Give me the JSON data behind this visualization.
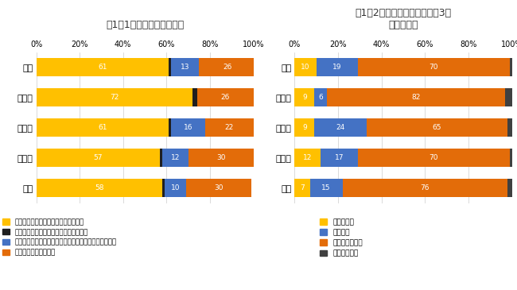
{
  "chart1": {
    "title": "図1－1　減農薬の取り組み",
    "categories": [
      "全国",
      "北海道",
      "東日本",
      "西日本",
      "九州"
    ],
    "series": [
      {
        "label": "１：成分数を制限して取り組んでいる",
        "color": "#FFC000",
        "values": [
          61,
          72,
          61,
          57,
          58
        ]
      },
      {
        "label": "２：散布回数を制限して取り組んでいる",
        "color": "#1F1F1F",
        "values": [
          1,
          2,
          1,
          1,
          1
        ]
      },
      {
        "label": "３：成分数と散布回数の両方を制限して取り組んでいる",
        "color": "#4472C4",
        "values": [
          13,
          0,
          16,
          12,
          10
        ]
      },
      {
        "label": "４：取り組んでいない",
        "color": "#E36C09",
        "values": [
          26,
          26,
          22,
          30,
          30
        ]
      }
    ]
  },
  "chart2": {
    "title": "図1－2　減農薬の取り組み（3年\n後の予想）",
    "categories": [
      "全国",
      "北海道",
      "東日本",
      "西日本",
      "九州"
    ],
    "series": [
      {
        "label": "１：増える",
        "color": "#FFC000",
        "values": [
          10,
          9,
          9,
          12,
          7
        ]
      },
      {
        "label": "２：減る",
        "color": "#4472C4",
        "values": [
          19,
          6,
          24,
          17,
          15
        ]
      },
      {
        "label": "３：変わらない",
        "color": "#E36C09",
        "values": [
          70,
          82,
          65,
          70,
          76
        ]
      },
      {
        "label": "４：回答ナシ",
        "color": "#404040",
        "values": [
          2,
          3,
          2,
          1,
          2
        ]
      }
    ]
  },
  "background_color": "#FFFFFF",
  "xtick_labels": [
    "0%",
    "20%",
    "40%",
    "60%",
    "80%",
    "100%"
  ],
  "xtick_values": [
    0,
    20,
    40,
    60,
    80,
    100
  ]
}
